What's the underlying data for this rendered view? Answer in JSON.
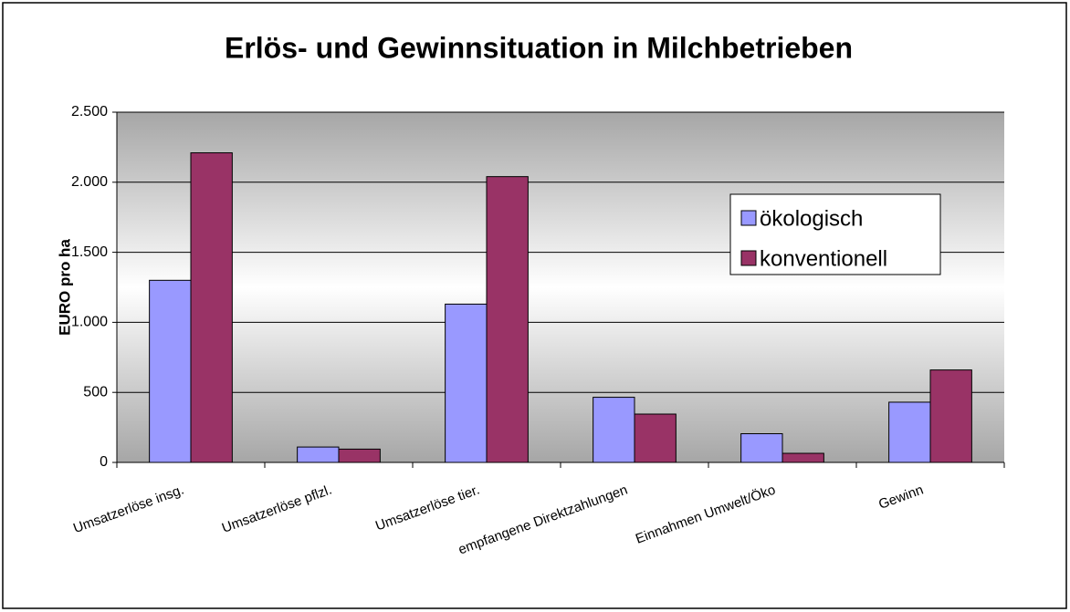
{
  "chart_data": {
    "type": "bar",
    "title": "Erlös- und Gewinnsituation in Milchbetrieben",
    "y_label": "EURO pro ha",
    "categories": [
      "Umsatzerlöse insg.",
      "Umsatzerlöse pflzl.",
      "Umsatzerlöse tier.",
      "empfangene Direktzahlungen",
      "Einnahmen Umwelt/Öko",
      "Gewinn"
    ],
    "series": [
      {
        "name": "ökologisch",
        "color": "#9999ff",
        "values": [
          1300,
          110,
          1130,
          465,
          205,
          430
        ]
      },
      {
        "name": "konventionell",
        "color": "#993366",
        "values": [
          2210,
          95,
          2040,
          345,
          65,
          660
        ]
      }
    ],
    "ylim": [
      0,
      2500
    ],
    "yticks": [
      0,
      500,
      {
        "value": 1000,
        "label": "1.000"
      },
      {
        "value": 1500,
        "label": "1.500"
      },
      {
        "value": 2000,
        "label": "2.000"
      },
      {
        "value": 2500,
        "label": "2.500"
      }
    ],
    "grid": true,
    "legend": "right"
  }
}
